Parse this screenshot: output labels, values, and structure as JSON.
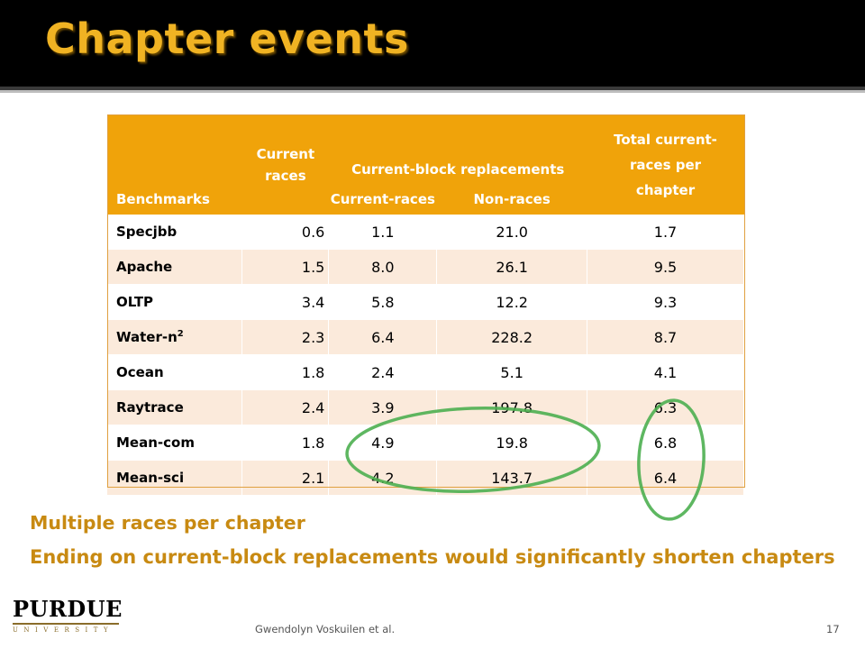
{
  "slide": {
    "title": "Chapter events",
    "footer_author": "Gwendolyn Voskuilen et al.",
    "page_number": "17"
  },
  "table": {
    "headers": {
      "benchmarks": "Benchmarks",
      "current_races": "Current races",
      "cbr_group": "Current-block replacements",
      "cbr_current_races": "Current-races",
      "cbr_non_races": "Non-races",
      "total": "Total current-races per chapter"
    },
    "rows": [
      {
        "name": "Specjbb",
        "sup": "",
        "current": "0.6",
        "cbr_current": "1.1",
        "cbr_non": "21.0",
        "total": "1.7"
      },
      {
        "name": "Apache",
        "sup": "",
        "current": "1.5",
        "cbr_current": "8.0",
        "cbr_non": "26.1",
        "total": "9.5"
      },
      {
        "name": "OLTP",
        "sup": "",
        "current": "3.4",
        "cbr_current": "5.8",
        "cbr_non": "12.2",
        "total": "9.3"
      },
      {
        "name": "Water-n",
        "sup": "2",
        "current": "2.3",
        "cbr_current": "6.4",
        "cbr_non": "228.2",
        "total": "8.7"
      },
      {
        "name": "Ocean",
        "sup": "",
        "current": "1.8",
        "cbr_current": "2.4",
        "cbr_non": "5.1",
        "total": "4.1"
      },
      {
        "name": "Raytrace",
        "sup": "",
        "current": "2.4",
        "cbr_current": "3.9",
        "cbr_non": "197.8",
        "total": "6.3"
      },
      {
        "name": "Mean-com",
        "sup": "",
        "current": "1.8",
        "cbr_current": "4.9",
        "cbr_non": "19.8",
        "total": "6.8"
      },
      {
        "name": "Mean-sci",
        "sup": "",
        "current": "2.1",
        "cbr_current": "4.2",
        "cbr_non": "143.7",
        "total": "6.4"
      }
    ]
  },
  "bullets": [
    "Multiple races per chapter",
    "Ending on current-block replacements would significantly shorten chapters"
  ],
  "logo": {
    "word": "PURDUE",
    "sub": "UNIVERSITY"
  },
  "colors": {
    "title": "#f0b323",
    "header_fill": "#f0a30a",
    "band_fill": "#fbeadb",
    "bullet_text": "#c88a12",
    "highlight_ellipse": "#4caf50"
  }
}
